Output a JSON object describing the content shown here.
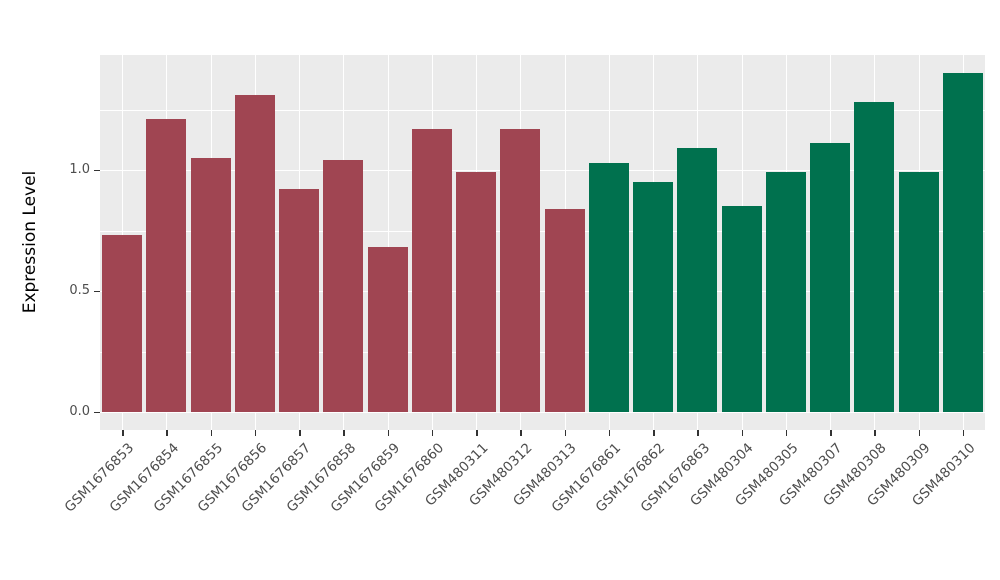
{
  "chart_data": {
    "type": "bar",
    "title": "",
    "xlabel": "",
    "ylabel": "Expression Level",
    "ylim": [
      0,
      1.475
    ],
    "grid": true,
    "legend": "none",
    "panel_background": "#EBEBEB",
    "gridline_color": "#FFFFFF",
    "axis_text_color": "#4D4D4D",
    "y_ticks": {
      "values": [
        0.0,
        0.5,
        1.0
      ],
      "labels": [
        "0.0",
        "0.5",
        "1.0"
      ]
    },
    "y_minor_ticks": [
      0.25,
      0.75,
      1.25
    ],
    "group_colors": {
      "group1": "#A04552",
      "group2": "#00714E"
    },
    "bars": [
      {
        "label": "GSM1676853",
        "value": 0.73,
        "color": "#A04552"
      },
      {
        "label": "GSM1676854",
        "value": 1.21,
        "color": "#A04552"
      },
      {
        "label": "GSM1676855",
        "value": 1.05,
        "color": "#A04552"
      },
      {
        "label": "GSM1676856",
        "value": 1.31,
        "color": "#A04552"
      },
      {
        "label": "GSM1676857",
        "value": 0.92,
        "color": "#A04552"
      },
      {
        "label": "GSM1676858",
        "value": 1.04,
        "color": "#A04552"
      },
      {
        "label": "GSM1676859",
        "value": 0.68,
        "color": "#A04552"
      },
      {
        "label": "GSM1676860",
        "value": 1.17,
        "color": "#A04552"
      },
      {
        "label": "GSM480311",
        "value": 0.99,
        "color": "#A04552"
      },
      {
        "label": "GSM480312",
        "value": 1.17,
        "color": "#A04552"
      },
      {
        "label": "GSM480313",
        "value": 0.84,
        "color": "#A04552"
      },
      {
        "label": "GSM1676861",
        "value": 1.03,
        "color": "#00714E"
      },
      {
        "label": "GSM1676862",
        "value": 0.95,
        "color": "#00714E"
      },
      {
        "label": "GSM1676863",
        "value": 1.09,
        "color": "#00714E"
      },
      {
        "label": "GSM480304",
        "value": 0.85,
        "color": "#00714E"
      },
      {
        "label": "GSM480305",
        "value": 0.99,
        "color": "#00714E"
      },
      {
        "label": "GSM480307",
        "value": 1.11,
        "color": "#00714E"
      },
      {
        "label": "GSM480308",
        "value": 1.28,
        "color": "#00714E"
      },
      {
        "label": "GSM480309",
        "value": 0.99,
        "color": "#00714E"
      },
      {
        "label": "GSM480310",
        "value": 1.4,
        "color": "#00714E"
      }
    ]
  }
}
